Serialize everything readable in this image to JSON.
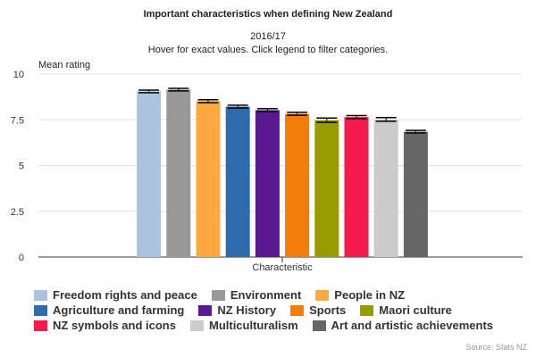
{
  "chart_data": {
    "type": "bar",
    "title": "Important characteristics when defining New Zealand",
    "subtitle_period": "2016/17",
    "subtitle_note": "Hover for exact values. Click legend to filter categories.",
    "ylabel": "Mean rating",
    "xlabel": "Characteristic",
    "ylim": [
      0,
      10
    ],
    "yticks": [
      "0",
      "2.5",
      "5",
      "7.5",
      "10"
    ],
    "ytick_values": [
      0,
      2.5,
      5,
      7.5,
      10
    ],
    "grid": true,
    "legend_position": "bottom",
    "error_bars": true,
    "series": [
      {
        "name": "Freedom rights and peace",
        "value": 9.05,
        "err": 0.07,
        "color": "#a9c4dc"
      },
      {
        "name": "Environment",
        "value": 9.15,
        "err": 0.07,
        "color": "#989898"
      },
      {
        "name": "People in NZ",
        "value": 8.52,
        "err": 0.08,
        "color": "#ffa940"
      },
      {
        "name": "Agriculture and farming",
        "value": 8.22,
        "err": 0.08,
        "color": "#2d6aae"
      },
      {
        "name": "NZ History",
        "value": 8.03,
        "err": 0.08,
        "color": "#5a1a8f"
      },
      {
        "name": "Sports",
        "value": 7.83,
        "err": 0.08,
        "color": "#f47c0a"
      },
      {
        "name": "Maori culture",
        "value": 7.48,
        "err": 0.12,
        "color": "#989a00"
      },
      {
        "name": "NZ symbols and icons",
        "value": 7.65,
        "err": 0.08,
        "color": "#f51a4d"
      },
      {
        "name": "Multiculturalism",
        "value": 7.52,
        "err": 0.1,
        "color": "#cbcbcb"
      },
      {
        "name": "Art and artistic achievements",
        "value": 6.85,
        "err": 0.07,
        "color": "#666666"
      }
    ],
    "source": "Source: Stats NZ"
  }
}
